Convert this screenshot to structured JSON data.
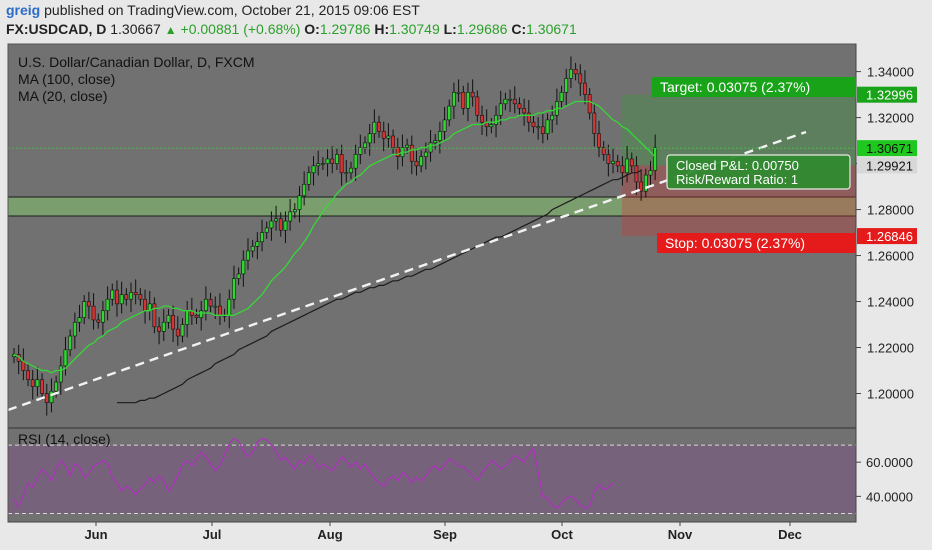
{
  "header": {
    "user": "greig",
    "published_text": "published on TradingView.com, October 21, 2015 09:06 EST"
  },
  "ticker": {
    "symbol_text": "FX:USDCAD, D",
    "last": "1.30667",
    "change_arrow": "▲",
    "change": "+0.00881 (+0.68%)",
    "o_label": "O:",
    "o": "1.29786",
    "h_label": "H:",
    "h": "1.30749",
    "l_label": "L:",
    "l": "1.29686",
    "c_label": "C:",
    "c": "1.30671"
  },
  "legend": {
    "title": "U.S. Dollar/Canadian Dollar, D, FXCM",
    "ma100": "MA (100, close)",
    "ma20": "MA (20, close)",
    "rsi": "RSI (14, close)"
  },
  "colors": {
    "panel_bg": "#717171",
    "up": "#2fd92f",
    "down": "#d63434",
    "ma20": "#36d836",
    "ma100": "#1c1c1c",
    "target_box": "#19a319",
    "stop_box": "#e51b1b",
    "rsi_line": "#b030c0",
    "rsi_band": "#7a5c80"
  },
  "chart_data": {
    "type": "candlestick",
    "title": "U.S. Dollar/Canadian Dollar, D, FXCM",
    "ylim": [
      1.185,
      1.352
    ],
    "y_ticks": [
      "1.34000",
      "1.32000",
      "1.30000",
      "1.28000",
      "1.26000",
      "1.24000",
      "1.22000",
      "1.20000"
    ],
    "x_labels": [
      "Jun",
      "Jul",
      "Aug",
      "Sep",
      "Oct",
      "Nov",
      "Dec"
    ],
    "closes": [
      1.217,
      1.214,
      1.21,
      1.206,
      1.203,
      1.206,
      1.2,
      1.196,
      1.201,
      1.205,
      1.212,
      1.219,
      1.225,
      1.231,
      1.233,
      1.24,
      1.238,
      1.232,
      1.231,
      1.236,
      1.241,
      1.245,
      1.239,
      1.243,
      1.241,
      1.244,
      1.243,
      1.241,
      1.236,
      1.239,
      1.229,
      1.227,
      1.231,
      1.234,
      1.228,
      1.225,
      1.23,
      1.236,
      1.234,
      1.233,
      1.236,
      1.241,
      1.238,
      1.238,
      1.234,
      1.234,
      1.241,
      1.25,
      1.252,
      1.258,
      1.262,
      1.264,
      1.266,
      1.27,
      1.272,
      1.275,
      1.276,
      1.271,
      1.275,
      1.279,
      1.28,
      1.286,
      1.291,
      1.296,
      1.299,
      1.3,
      1.3,
      1.302,
      1.3,
      1.304,
      1.296,
      1.296,
      1.298,
      1.304,
      1.307,
      1.309,
      1.313,
      1.318,
      1.314,
      1.311,
      1.312,
      1.307,
      1.303,
      1.307,
      1.308,
      1.301,
      1.299,
      1.303,
      1.305,
      1.309,
      1.31,
      1.314,
      1.319,
      1.325,
      1.331,
      1.331,
      1.324,
      1.331,
      1.329,
      1.321,
      1.318,
      1.316,
      1.317,
      1.321,
      1.326,
      1.328,
      1.328,
      1.326,
      1.324,
      1.322,
      1.318,
      1.316,
      1.316,
      1.313,
      1.319,
      1.321,
      1.327,
      1.331,
      1.337,
      1.341,
      1.339,
      1.335,
      1.33,
      1.322,
      1.313,
      1.307,
      1.304,
      1.3,
      1.301,
      1.299,
      1.296,
      1.302,
      1.299,
      1.292,
      1.288,
      1.295,
      1.297,
      1.307
    ],
    "ma100": [
      1.196,
      1.196,
      1.196,
      1.196,
      1.196,
      1.197,
      1.197,
      1.198,
      1.198,
      1.199,
      1.2,
      1.201,
      1.202,
      1.203,
      1.204,
      1.206,
      1.207,
      1.208,
      1.209,
      1.21,
      1.211,
      1.213,
      1.214,
      1.215,
      1.216,
      1.217,
      1.219,
      1.22,
      1.221,
      1.222,
      1.223,
      1.224,
      1.225,
      1.227,
      1.228,
      1.229,
      1.23,
      1.231,
      1.232,
      1.233,
      1.234,
      1.235,
      1.236,
      1.237,
      1.238,
      1.239,
      1.24,
      1.241,
      1.241,
      1.242,
      1.243,
      1.244,
      1.244,
      1.245,
      1.246,
      1.246,
      1.247,
      1.247,
      1.248,
      1.249,
      1.249,
      1.25,
      1.251,
      1.251,
      1.252,
      1.253,
      1.254,
      1.254,
      1.255,
      1.256,
      1.257,
      1.258,
      1.259,
      1.26,
      1.261,
      1.262,
      1.263,
      1.264,
      1.265,
      1.266,
      1.267,
      1.268,
      1.268,
      1.269,
      1.27,
      1.271,
      1.272,
      1.273,
      1.274,
      1.275,
      1.276,
      1.277,
      1.278,
      1.28,
      1.281,
      1.282,
      1.283,
      1.284,
      1.285,
      1.286,
      1.287,
      1.288,
      1.289,
      1.29,
      1.291,
      1.292,
      1.293,
      1.293,
      1.294,
      1.295,
      1.296,
      1.296,
      1.297
    ],
    "ma20": [
      1.217,
      1.216,
      1.214,
      1.213,
      1.212,
      1.211,
      1.21,
      1.21,
      1.209,
      1.21,
      1.21,
      1.211,
      1.213,
      1.215,
      1.217,
      1.219,
      1.221,
      1.222,
      1.224,
      1.225,
      1.227,
      1.228,
      1.229,
      1.231,
      1.232,
      1.233,
      1.234,
      1.235,
      1.236,
      1.236,
      1.237,
      1.237,
      1.238,
      1.238,
      1.237,
      1.237,
      1.236,
      1.236,
      1.236,
      1.235,
      1.235,
      1.235,
      1.235,
      1.234,
      1.234,
      1.234,
      1.234,
      1.234,
      1.235,
      1.236,
      1.237,
      1.239,
      1.241,
      1.243,
      1.246,
      1.249,
      1.251,
      1.253,
      1.255,
      1.258,
      1.261,
      1.263,
      1.266,
      1.269,
      1.273,
      1.276,
      1.279,
      1.282,
      1.284,
      1.287,
      1.289,
      1.291,
      1.292,
      1.294,
      1.295,
      1.297,
      1.299,
      1.3,
      1.301,
      1.302,
      1.303,
      1.304,
      1.304,
      1.305,
      1.305,
      1.306,
      1.306,
      1.307,
      1.307,
      1.308,
      1.308,
      1.309,
      1.31,
      1.311,
      1.313,
      1.314,
      1.315,
      1.316,
      1.317,
      1.317,
      1.317,
      1.318,
      1.318,
      1.318,
      1.319,
      1.319,
      1.32,
      1.32,
      1.321,
      1.321,
      1.321,
      1.321,
      1.322,
      1.322,
      1.323,
      1.323,
      1.324,
      1.324,
      1.325,
      1.326,
      1.327,
      1.327,
      1.327,
      1.327,
      1.326,
      1.325,
      1.323,
      1.321,
      1.319,
      1.318,
      1.316,
      1.315,
      1.313,
      1.311,
      1.309,
      1.307,
      1.305,
      1.303
    ],
    "rsi": {
      "ylim": [
        25,
        80
      ],
      "ticks": [
        "60.0000",
        "40.0000"
      ],
      "bands": [
        70,
        30
      ],
      "values": [
        38,
        34,
        41,
        48,
        45,
        51,
        56,
        53,
        49,
        56,
        61,
        58,
        52,
        59,
        57,
        51,
        53,
        58,
        59,
        61,
        59,
        51,
        48,
        43,
        46,
        44,
        41,
        44,
        47,
        51,
        48,
        52,
        49,
        43,
        47,
        52,
        59,
        61,
        58,
        62,
        66,
        63,
        59,
        55,
        58,
        64,
        71,
        74,
        72,
        67,
        63,
        66,
        72,
        74,
        73,
        70,
        66,
        61,
        63,
        59,
        56,
        61,
        59,
        64,
        62,
        56,
        59,
        57,
        55,
        59,
        63,
        61,
        57,
        60,
        56,
        59,
        54,
        51,
        48,
        46,
        50,
        52,
        49,
        54,
        52,
        48,
        51,
        49,
        52,
        56,
        58,
        55,
        58,
        62,
        60,
        58,
        57,
        55,
        52,
        49,
        54,
        57,
        61,
        59,
        56,
        58,
        61,
        64,
        62,
        60,
        65,
        68,
        54,
        40,
        39,
        35,
        33,
        36,
        39,
        40,
        38,
        35,
        33,
        34,
        43,
        47,
        44,
        45,
        48
      ]
    },
    "price_labels": {
      "target": "1.32996",
      "last": "1.30671",
      "entry": "1.29921",
      "stop": "1.26846"
    },
    "annotations": {
      "target": "Target: 0.03075 (2.37%)",
      "stop": "Stop: 0.03075 (2.37%)",
      "pnl": "Closed P&L: 0.00750",
      "rr": "Risk/Reward Ratio: 1"
    }
  }
}
